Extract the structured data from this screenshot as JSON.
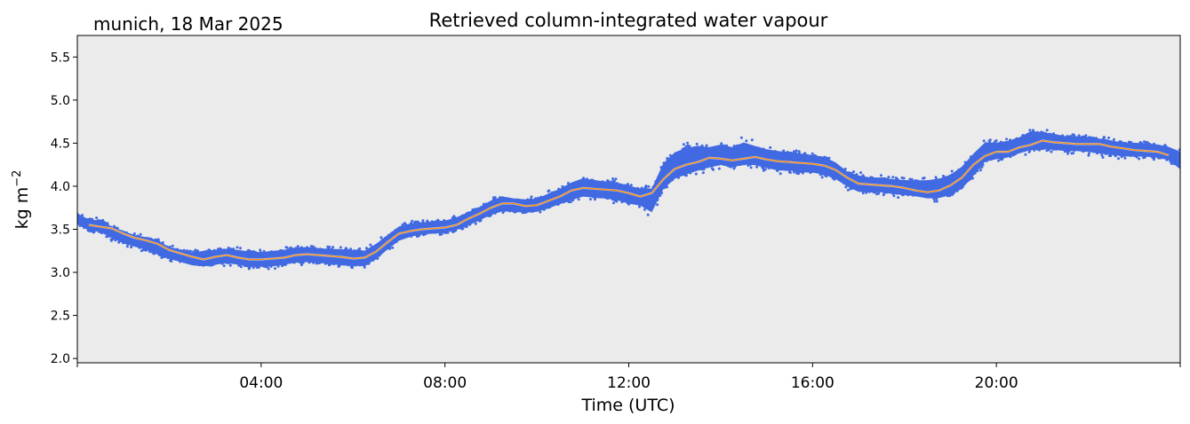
{
  "chart_data": {
    "type": "scatter",
    "title": "Retrieved column-integrated water vapour",
    "subtitle": "munich, 18 Mar 2025",
    "xlabel": "Time (UTC)",
    "ylabel": "kg m",
    "ylabel_superscript": "−2",
    "xlim": [
      0,
      24
    ],
    "ylim": [
      1.95,
      5.75
    ],
    "x_ticks": [
      {
        "value": 4,
        "label": "04:00"
      },
      {
        "value": 8,
        "label": "08:00"
      },
      {
        "value": 12,
        "label": "12:00"
      },
      {
        "value": 16,
        "label": "16:00"
      },
      {
        "value": 20,
        "label": "20:00"
      }
    ],
    "y_ticks": [
      {
        "value": 2.0,
        "label": "2.0"
      },
      {
        "value": 2.5,
        "label": "2.5"
      },
      {
        "value": 3.0,
        "label": "3.0"
      },
      {
        "value": 3.5,
        "label": "3.5"
      },
      {
        "value": 4.0,
        "label": "4.0"
      },
      {
        "value": 4.5,
        "label": "4.5"
      },
      {
        "value": 5.0,
        "label": "5.0"
      },
      {
        "value": 5.5,
        "label": "5.5"
      }
    ],
    "plot_background": "#ebebeb",
    "series": [
      {
        "kind": "scatter-band",
        "color": "#4169e1",
        "x": [
          0.0,
          0.25,
          0.5,
          0.75,
          1.0,
          1.25,
          1.5,
          1.75,
          2.0,
          2.25,
          2.5,
          2.75,
          3.0,
          3.25,
          3.5,
          3.75,
          4.0,
          4.25,
          4.5,
          4.75,
          5.0,
          5.25,
          5.5,
          5.75,
          6.0,
          6.25,
          6.5,
          6.75,
          7.0,
          7.25,
          7.5,
          7.75,
          8.0,
          8.25,
          8.5,
          8.75,
          9.0,
          9.25,
          9.5,
          9.75,
          10.0,
          10.25,
          10.5,
          10.75,
          11.0,
          11.25,
          11.5,
          11.75,
          12.0,
          12.25,
          12.5,
          12.75,
          13.0,
          13.25,
          13.5,
          13.75,
          14.0,
          14.25,
          14.5,
          14.75,
          15.0,
          15.25,
          15.5,
          15.75,
          16.0,
          16.25,
          16.5,
          16.75,
          17.0,
          17.25,
          17.5,
          17.75,
          18.0,
          18.25,
          18.5,
          18.75,
          19.0,
          19.25,
          19.5,
          19.75,
          20.0,
          20.25,
          20.5,
          20.75,
          21.0,
          21.25,
          21.5,
          21.75,
          22.0,
          22.25,
          22.5,
          22.75,
          23.0,
          23.25,
          23.5,
          23.75,
          24.0
        ],
        "low": [
          3.52,
          3.45,
          3.43,
          3.36,
          3.3,
          3.26,
          3.22,
          3.16,
          3.12,
          3.08,
          3.04,
          3.02,
          3.04,
          3.06,
          3.04,
          3.02,
          3.02,
          3.02,
          3.04,
          3.06,
          3.07,
          3.06,
          3.05,
          3.03,
          3.02,
          3.03,
          3.1,
          3.22,
          3.32,
          3.37,
          3.4,
          3.41,
          3.42,
          3.45,
          3.5,
          3.56,
          3.62,
          3.66,
          3.66,
          3.65,
          3.66,
          3.7,
          3.74,
          3.78,
          3.82,
          3.81,
          3.8,
          3.78,
          3.74,
          3.72,
          3.62,
          3.88,
          4.0,
          4.05,
          4.1,
          4.15,
          4.18,
          4.15,
          4.18,
          4.18,
          4.15,
          4.12,
          4.12,
          4.1,
          4.1,
          4.08,
          4.03,
          3.95,
          3.88,
          3.88,
          3.88,
          3.86,
          3.85,
          3.83,
          3.8,
          3.8,
          3.83,
          3.9,
          4.05,
          4.22,
          4.26,
          4.28,
          4.33,
          4.36,
          4.38,
          4.37,
          4.36,
          4.36,
          4.35,
          4.33,
          4.32,
          4.3,
          4.3,
          4.3,
          4.29,
          4.26,
          4.14
        ],
        "high": [
          3.72,
          3.65,
          3.64,
          3.57,
          3.52,
          3.47,
          3.45,
          3.42,
          3.33,
          3.3,
          3.27,
          3.3,
          3.31,
          3.32,
          3.31,
          3.29,
          3.28,
          3.3,
          3.31,
          3.34,
          3.34,
          3.33,
          3.32,
          3.32,
          3.31,
          3.3,
          3.38,
          3.48,
          3.58,
          3.61,
          3.62,
          3.63,
          3.64,
          3.68,
          3.74,
          3.8,
          3.88,
          3.93,
          3.9,
          3.89,
          3.9,
          3.96,
          4.02,
          4.1,
          4.15,
          4.13,
          4.11,
          4.1,
          4.06,
          4.03,
          4.05,
          4.35,
          4.48,
          4.53,
          4.55,
          4.52,
          4.55,
          4.52,
          4.58,
          4.53,
          4.49,
          4.47,
          4.46,
          4.44,
          4.42,
          4.4,
          4.33,
          4.22,
          4.18,
          4.15,
          4.15,
          4.13,
          4.12,
          4.12,
          4.13,
          4.15,
          4.2,
          4.3,
          4.45,
          4.57,
          4.56,
          4.58,
          4.62,
          4.7,
          4.68,
          4.66,
          4.63,
          4.63,
          4.62,
          4.6,
          4.58,
          4.55,
          4.55,
          4.54,
          4.53,
          4.5,
          4.46
        ]
      },
      {
        "kind": "line",
        "color": "#ff8c00",
        "x": [
          0.25,
          0.5,
          0.75,
          1.0,
          1.25,
          1.5,
          1.75,
          2.0,
          2.25,
          2.5,
          2.75,
          3.0,
          3.25,
          3.5,
          3.75,
          4.0,
          4.25,
          4.5,
          4.75,
          5.0,
          5.25,
          5.5,
          5.75,
          6.0,
          6.25,
          6.5,
          6.75,
          7.0,
          7.25,
          7.5,
          7.75,
          8.0,
          8.25,
          8.5,
          8.75,
          9.0,
          9.25,
          9.5,
          9.75,
          10.0,
          10.25,
          10.5,
          10.75,
          11.0,
          11.25,
          11.5,
          11.75,
          12.0,
          12.25,
          12.5,
          12.75,
          13.0,
          13.25,
          13.5,
          13.75,
          14.0,
          14.25,
          14.5,
          14.75,
          15.0,
          15.25,
          15.5,
          15.75,
          16.0,
          16.25,
          16.5,
          16.75,
          17.0,
          17.25,
          17.5,
          17.75,
          18.0,
          18.25,
          18.5,
          18.75,
          19.0,
          19.25,
          19.5,
          19.75,
          20.0,
          20.25,
          20.5,
          20.75,
          21.0,
          21.25,
          21.5,
          21.75,
          22.0,
          22.25,
          22.5,
          22.75,
          23.0,
          23.25,
          23.5,
          23.75
        ],
        "y": [
          3.55,
          3.53,
          3.51,
          3.45,
          3.4,
          3.37,
          3.33,
          3.26,
          3.22,
          3.18,
          3.15,
          3.18,
          3.2,
          3.17,
          3.15,
          3.15,
          3.16,
          3.17,
          3.2,
          3.21,
          3.2,
          3.19,
          3.18,
          3.16,
          3.17,
          3.24,
          3.35,
          3.45,
          3.48,
          3.5,
          3.51,
          3.52,
          3.55,
          3.62,
          3.68,
          3.75,
          3.8,
          3.8,
          3.77,
          3.78,
          3.83,
          3.88,
          3.95,
          3.98,
          3.97,
          3.96,
          3.95,
          3.92,
          3.88,
          3.92,
          4.08,
          4.2,
          4.25,
          4.28,
          4.33,
          4.32,
          4.3,
          4.32,
          4.34,
          4.31,
          4.29,
          4.28,
          4.27,
          4.26,
          4.24,
          4.19,
          4.1,
          4.03,
          4.02,
          4.01,
          4.0,
          3.98,
          3.95,
          3.93,
          3.95,
          4.01,
          4.1,
          4.25,
          4.35,
          4.4,
          4.4,
          4.45,
          4.48,
          4.53,
          4.51,
          4.5,
          4.49,
          4.49,
          4.49,
          4.46,
          4.44,
          4.42,
          4.41,
          4.4,
          4.36
        ]
      }
    ]
  }
}
